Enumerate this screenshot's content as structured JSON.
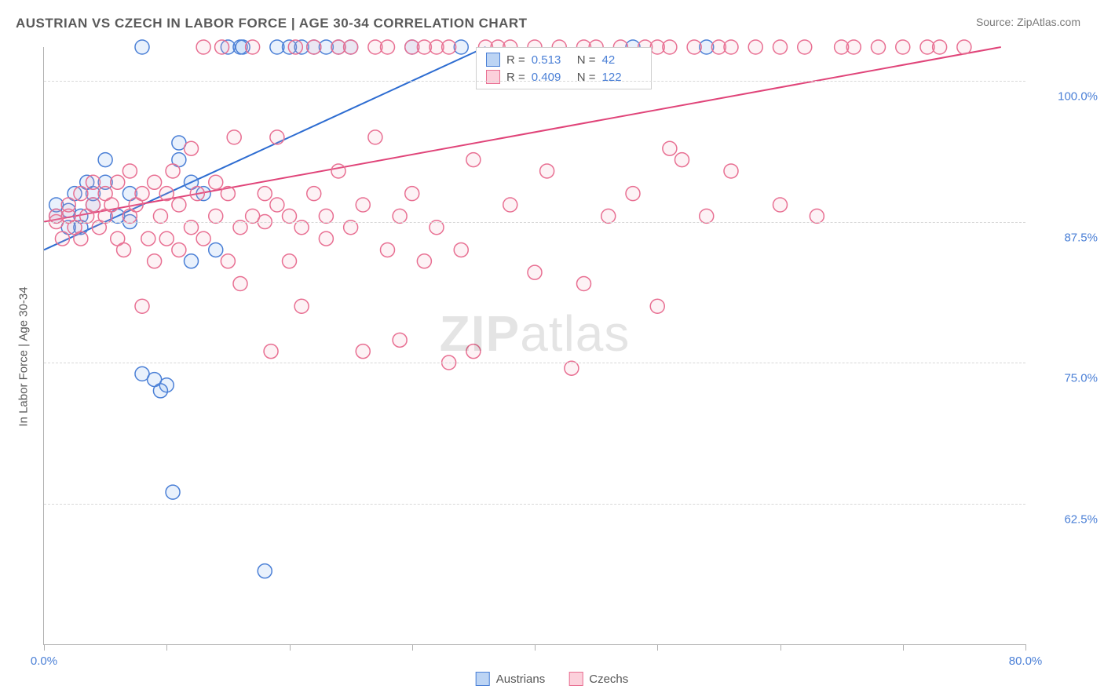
{
  "title": "AUSTRIAN VS CZECH IN LABOR FORCE | AGE 30-34 CORRELATION CHART",
  "source": "Source: ZipAtlas.com",
  "y_axis_label": "In Labor Force | Age 30-34",
  "watermark_a": "ZIP",
  "watermark_b": "atlas",
  "chart": {
    "type": "scatter",
    "xlim": [
      0,
      80
    ],
    "ylim": [
      50,
      103
    ],
    "x_ticks": [
      0,
      10,
      20,
      30,
      40,
      50,
      60,
      70,
      80
    ],
    "x_tick_labels": {
      "0": "0.0%",
      "80": "80.0%"
    },
    "y_gridlines": [
      62.5,
      75.0,
      87.5,
      100.0
    ],
    "y_tick_labels": [
      "62.5%",
      "75.0%",
      "87.5%",
      "100.0%"
    ],
    "background_color": "#ffffff",
    "grid_color": "#d8d8d8",
    "axis_color": "#b0b0b0",
    "tick_label_color": "#4a7fd6",
    "marker_radius": 9,
    "marker_fill_opacity": 0.15,
    "marker_stroke_width": 1.5,
    "series": [
      {
        "name": "Austrians",
        "color": "#6a9ee8",
        "stroke": "#4a7fd6",
        "r": 0.513,
        "n": 42,
        "trend": {
          "x1": 0,
          "y1": 85.0,
          "x2": 36,
          "y2": 103.0,
          "color": "#2d6cd1",
          "width": 2
        },
        "points": [
          [
            1,
            88
          ],
          [
            1,
            89
          ],
          [
            2,
            87
          ],
          [
            2,
            88.5
          ],
          [
            2.5,
            90
          ],
          [
            3,
            88
          ],
          [
            3,
            87
          ],
          [
            3.5,
            91
          ],
          [
            4,
            89
          ],
          [
            4,
            90
          ],
          [
            5,
            91
          ],
          [
            5,
            93
          ],
          [
            6,
            88
          ],
          [
            7,
            90
          ],
          [
            7,
            87.5
          ],
          [
            8,
            103
          ],
          [
            11,
            94.5
          ],
          [
            11,
            93
          ],
          [
            12,
            91
          ],
          [
            12,
            84
          ],
          [
            13,
            90
          ],
          [
            8,
            74
          ],
          [
            9,
            73.5
          ],
          [
            10,
            73
          ],
          [
            9.5,
            72.5
          ],
          [
            10.5,
            63.5
          ],
          [
            14,
            85
          ],
          [
            15,
            103
          ],
          [
            16,
            103
          ],
          [
            16.2,
            103
          ],
          [
            18,
            56.5
          ],
          [
            19,
            103
          ],
          [
            20,
            103
          ],
          [
            21,
            103
          ],
          [
            22,
            103
          ],
          [
            23,
            103
          ],
          [
            24,
            103
          ],
          [
            25,
            103
          ],
          [
            30,
            103
          ],
          [
            34,
            103
          ],
          [
            48,
            103
          ],
          [
            54,
            103
          ]
        ]
      },
      {
        "name": "Czechs",
        "color": "#f2a7bb",
        "stroke": "#e86f92",
        "r": 0.409,
        "n": 122,
        "trend": {
          "x1": 0,
          "y1": 87.5,
          "x2": 78,
          "y2": 103.0,
          "color": "#e04479",
          "width": 2
        },
        "points": [
          [
            1,
            87.5
          ],
          [
            1,
            88
          ],
          [
            1.5,
            86
          ],
          [
            2,
            88
          ],
          [
            2,
            89
          ],
          [
            2.5,
            87
          ],
          [
            3,
            90
          ],
          [
            3,
            86
          ],
          [
            3.5,
            88
          ],
          [
            4,
            89
          ],
          [
            4,
            91
          ],
          [
            4.5,
            87
          ],
          [
            5,
            88
          ],
          [
            5,
            90
          ],
          [
            5.5,
            89
          ],
          [
            6,
            86
          ],
          [
            6,
            91
          ],
          [
            6.5,
            85
          ],
          [
            7,
            92
          ],
          [
            7,
            88
          ],
          [
            7.5,
            89
          ],
          [
            8,
            90
          ],
          [
            8,
            80
          ],
          [
            8.5,
            86
          ],
          [
            9,
            84
          ],
          [
            9,
            91
          ],
          [
            9.5,
            88
          ],
          [
            10,
            90
          ],
          [
            10,
            86
          ],
          [
            10.5,
            92
          ],
          [
            11,
            85
          ],
          [
            11,
            89
          ],
          [
            12,
            94
          ],
          [
            12,
            87
          ],
          [
            12.5,
            90
          ],
          [
            13,
            103
          ],
          [
            13,
            86
          ],
          [
            14,
            91
          ],
          [
            14,
            88
          ],
          [
            14.5,
            103
          ],
          [
            15,
            84
          ],
          [
            15,
            90
          ],
          [
            15.5,
            95
          ],
          [
            16,
            87
          ],
          [
            16,
            82
          ],
          [
            17,
            88
          ],
          [
            17,
            103
          ],
          [
            18,
            87.5
          ],
          [
            18,
            90
          ],
          [
            18.5,
            76
          ],
          [
            19,
            89
          ],
          [
            19,
            95
          ],
          [
            20,
            88
          ],
          [
            20,
            84
          ],
          [
            20.5,
            103
          ],
          [
            21,
            87
          ],
          [
            21,
            80
          ],
          [
            22,
            90
          ],
          [
            22,
            103
          ],
          [
            23,
            88
          ],
          [
            23,
            86
          ],
          [
            24,
            103
          ],
          [
            24,
            92
          ],
          [
            25,
            87
          ],
          [
            25,
            103
          ],
          [
            26,
            89
          ],
          [
            26,
            76
          ],
          [
            27,
            95
          ],
          [
            27,
            103
          ],
          [
            28,
            85
          ],
          [
            28,
            103
          ],
          [
            29,
            77
          ],
          [
            29,
            88
          ],
          [
            30,
            103
          ],
          [
            30,
            90
          ],
          [
            31,
            103
          ],
          [
            31,
            84
          ],
          [
            32,
            103
          ],
          [
            32,
            87
          ],
          [
            33,
            75
          ],
          [
            33,
            103
          ],
          [
            34,
            85
          ],
          [
            35,
            93
          ],
          [
            35,
            76
          ],
          [
            36,
            103
          ],
          [
            37,
            103
          ],
          [
            38,
            103
          ],
          [
            38,
            89
          ],
          [
            40,
            83
          ],
          [
            40,
            103
          ],
          [
            41,
            92
          ],
          [
            42,
            103
          ],
          [
            43,
            74.5
          ],
          [
            44,
            103
          ],
          [
            44,
            82
          ],
          [
            45,
            103
          ],
          [
            46,
            88
          ],
          [
            47,
            103
          ],
          [
            48,
            90
          ],
          [
            49,
            103
          ],
          [
            50,
            103
          ],
          [
            50,
            80
          ],
          [
            51,
            94
          ],
          [
            51,
            103
          ],
          [
            52,
            93
          ],
          [
            53,
            103
          ],
          [
            54,
            88
          ],
          [
            55,
            103
          ],
          [
            56,
            92
          ],
          [
            56,
            103
          ],
          [
            58,
            103
          ],
          [
            60,
            89
          ],
          [
            60,
            103
          ],
          [
            62,
            103
          ],
          [
            63,
            88
          ],
          [
            65,
            103
          ],
          [
            66,
            103
          ],
          [
            68,
            103
          ],
          [
            70,
            103
          ],
          [
            72,
            103
          ],
          [
            73,
            103
          ],
          [
            75,
            103
          ]
        ]
      }
    ]
  },
  "legend": {
    "items": [
      {
        "label": "Austrians",
        "fill": "#bcd4f4",
        "stroke": "#4a7fd6"
      },
      {
        "label": "Czechs",
        "fill": "#fcd0db",
        "stroke": "#e86f92"
      }
    ]
  },
  "stats_box": {
    "rows": [
      {
        "fill": "#bcd4f4",
        "stroke": "#4a7fd6",
        "r_label": "R =",
        "r": "0.513",
        "n_label": "N =",
        "n": "42"
      },
      {
        "fill": "#fcd0db",
        "stroke": "#e86f92",
        "r_label": "R =",
        "r": "0.409",
        "n_label": "N =",
        "n": "122"
      }
    ]
  }
}
